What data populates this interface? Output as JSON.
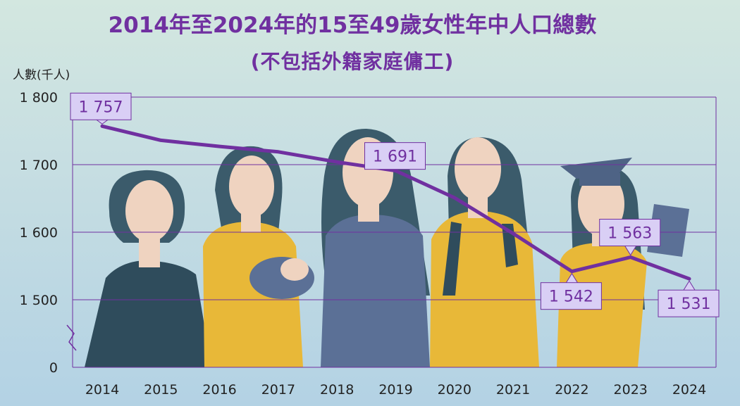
{
  "header": {
    "title_line1": "2014年至2024年的15至49歲女性年中人口總數",
    "title_line2": "(不包括外籍家庭傭工)"
  },
  "colors": {
    "title": "#7030a0",
    "line": "#7030a0",
    "gridline": "#7030a0",
    "label_fill": "#d9cff5",
    "label_border": "#7030a0",
    "label_text": "#7030a0",
    "hair": "#3b5b6b",
    "skin": "#efd3c0",
    "yellow": "#e8b838",
    "slate": "#5b7096"
  },
  "chart_data": {
    "type": "line",
    "title": "2014年至2024年的15至49歲女性年中人口總數",
    "subtitle": "(不包括外籍家庭傭工)",
    "ylabel": "人數(千人)",
    "xlabel": "",
    "x": [
      "2014",
      "2015",
      "2016",
      "2017",
      "2018",
      "2019",
      "2020",
      "2021",
      "2022",
      "2023",
      "2024"
    ],
    "series": [
      {
        "values": [
          1757,
          1736,
          1727,
          1719,
          1704,
          1691,
          1651,
          1598,
          1542,
          1563,
          1531
        ]
      }
    ],
    "data_labels": [
      {
        "x": "2014",
        "text": "1 757"
      },
      {
        "x": "2019",
        "text": "1 691"
      },
      {
        "x": "2022",
        "text": "1 542"
      },
      {
        "x": "2023",
        "text": "1 563"
      },
      {
        "x": "2024",
        "text": "1 531"
      }
    ],
    "y_ticks": [
      {
        "value": 1800,
        "label": "1 800"
      },
      {
        "value": 1700,
        "label": "1 700"
      },
      {
        "value": 1600,
        "label": "1 600"
      },
      {
        "value": 1500,
        "label": "1 500"
      }
    ],
    "y_zero_label": "0",
    "axis_break": true,
    "ylim": [
      1400,
      1800
    ],
    "grid": true,
    "legend": "none"
  }
}
